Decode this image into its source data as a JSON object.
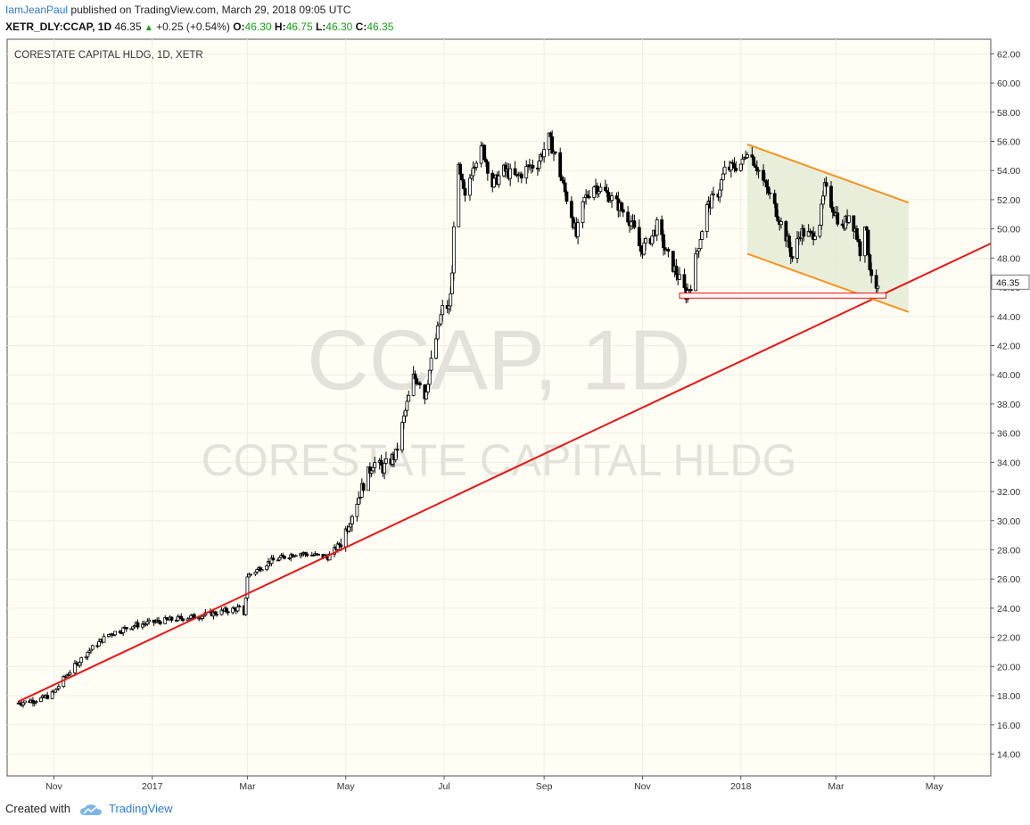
{
  "header": {
    "author": "IamJeanPaul",
    "published_text": "published on TradingView.com, March 29, 2018 09:05 UTC",
    "symbol_label": "XETR_DLY:CCAP, 1D",
    "last": "46.35",
    "change": "+0.25 (+0.54%)",
    "o_label": "O:",
    "o_value": "46.30",
    "h_label": "H:",
    "h_value": "46.75",
    "l_label": "L:",
    "l_value": "46.30",
    "c_label": "C:",
    "c_value": "46.35"
  },
  "footer": {
    "created_with": "Created with",
    "brand": "TradingView"
  },
  "chart_data": {
    "type": "candlestick",
    "title": "CORESTATE CAPITAL HLDG, 1D, XETR",
    "watermark_line1": "CCAP, 1D",
    "watermark_line2": "CORESTATE CAPITAL HLDG",
    "last_price_label": "46.35",
    "ylim": [
      12.5,
      63.0
    ],
    "y_ticks": [
      "14.00",
      "16.00",
      "18.00",
      "20.00",
      "22.00",
      "24.00",
      "26.00",
      "28.00",
      "30.00",
      "32.00",
      "34.00",
      "36.00",
      "38.00",
      "40.00",
      "42.00",
      "44.00",
      "46.00",
      "48.00",
      "50.00",
      "52.00",
      "54.00",
      "56.00",
      "58.00",
      "60.00",
      "62.00"
    ],
    "x_axis_labels": [
      {
        "label": "Nov",
        "date": "2016-11-01"
      },
      {
        "label": "2017",
        "date": "2017-01-01"
      },
      {
        "label": "Mar",
        "date": "2017-03-01"
      },
      {
        "label": "May",
        "date": "2017-05-01"
      },
      {
        "label": "Jul",
        "date": "2017-07-01"
      },
      {
        "label": "Sep",
        "date": "2017-09-01"
      },
      {
        "label": "Nov",
        "date": "2017-11-01"
      },
      {
        "label": "2018",
        "date": "2018-01-01"
      },
      {
        "label": "Mar",
        "date": "2018-03-01"
      },
      {
        "label": "May",
        "date": "2018-05-01"
      }
    ],
    "x_range": [
      "2016-10-03",
      "2018-06-05"
    ],
    "price_path": [
      [
        "2016-10-10",
        17.5
      ],
      [
        "2016-10-25",
        17.8
      ],
      [
        "2016-11-01",
        18.2
      ],
      [
        "2016-11-08",
        19.3
      ],
      [
        "2016-11-22",
        21.0
      ],
      [
        "2016-12-05",
        22.2
      ],
      [
        "2016-12-20",
        22.8
      ],
      [
        "2017-01-05",
        23.1
      ],
      [
        "2017-02-01",
        23.5
      ],
      [
        "2017-02-24",
        24.0
      ],
      [
        "2017-02-27",
        23.4
      ],
      [
        "2017-03-01",
        26.2
      ],
      [
        "2017-03-15",
        27.2
      ],
      [
        "2017-04-01",
        27.8
      ],
      [
        "2017-04-20",
        27.5
      ],
      [
        "2017-04-28",
        28.5
      ],
      [
        "2017-05-05",
        30.5
      ],
      [
        "2017-05-12",
        32.5
      ],
      [
        "2017-05-18",
        34.0
      ],
      [
        "2017-05-24",
        33.6
      ],
      [
        "2017-06-01",
        34.5
      ],
      [
        "2017-06-07",
        37.5
      ],
      [
        "2017-06-12",
        39.8
      ],
      [
        "2017-06-16",
        39.6
      ],
      [
        "2017-06-19",
        38.5
      ],
      [
        "2017-06-22",
        40.3
      ],
      [
        "2017-06-27",
        43.0
      ],
      [
        "2017-07-01",
        45.0
      ],
      [
        "2017-07-04",
        44.5
      ],
      [
        "2017-07-06",
        46.8
      ],
      [
        "2017-07-07",
        50.5
      ],
      [
        "2017-07-10",
        54.0
      ],
      [
        "2017-07-14",
        52.0
      ],
      [
        "2017-07-19",
        54.5
      ],
      [
        "2017-07-25",
        55.5
      ],
      [
        "2017-07-31",
        53.0
      ],
      [
        "2017-08-07",
        54.0
      ],
      [
        "2017-08-15",
        53.5
      ],
      [
        "2017-08-22",
        54.2
      ],
      [
        "2017-08-28",
        54.5
      ],
      [
        "2017-09-04",
        56.2
      ],
      [
        "2017-09-08",
        55.0
      ],
      [
        "2017-09-14",
        52.5
      ],
      [
        "2017-09-18",
        51.0
      ],
      [
        "2017-09-21",
        49.5
      ],
      [
        "2017-09-26",
        52.0
      ],
      [
        "2017-10-02",
        53.0
      ],
      [
        "2017-10-09",
        52.5
      ],
      [
        "2017-10-18",
        51.5
      ],
      [
        "2017-10-25",
        50.5
      ],
      [
        "2017-10-31",
        48.5
      ],
      [
        "2017-11-07",
        49.5
      ],
      [
        "2017-11-10",
        50.2
      ],
      [
        "2017-11-16",
        48.3
      ],
      [
        "2017-11-22",
        47.0
      ],
      [
        "2017-11-28",
        45.5
      ],
      [
        "2017-12-01",
        46.2
      ],
      [
        "2017-12-05",
        48.5
      ],
      [
        "2017-12-11",
        51.5
      ],
      [
        "2017-12-18",
        52.5
      ],
      [
        "2017-12-22",
        54.0
      ],
      [
        "2018-01-02",
        54.5
      ],
      [
        "2018-01-05",
        55.5
      ],
      [
        "2018-01-10",
        54.5
      ],
      [
        "2018-01-16",
        53.0
      ],
      [
        "2018-01-22",
        51.5
      ],
      [
        "2018-01-29",
        49.5
      ],
      [
        "2018-02-02",
        48.0
      ],
      [
        "2018-02-07",
        49.8
      ],
      [
        "2018-02-14",
        49.5
      ],
      [
        "2018-02-19",
        50.5
      ],
      [
        "2018-02-22",
        52.8
      ],
      [
        "2018-02-27",
        51.5
      ],
      [
        "2018-03-05",
        50.0
      ],
      [
        "2018-03-09",
        51.0
      ],
      [
        "2018-03-13",
        50.0
      ],
      [
        "2018-03-16",
        48.5
      ],
      [
        "2018-03-19",
        50.5
      ],
      [
        "2018-03-22",
        47.5
      ],
      [
        "2018-03-26",
        45.5
      ],
      [
        "2018-03-28",
        46.3
      ]
    ],
    "drawings": {
      "trendline": {
        "color": "#e81616",
        "start": [
          "2016-10-10",
          17.6
        ],
        "end": [
          "2018-06-05",
          49.0
        ]
      },
      "channel_upper": {
        "color": "#f7931e",
        "start": [
          "2018-01-05",
          55.8
        ],
        "end": [
          "2018-04-15",
          51.8
        ]
      },
      "channel_lower": {
        "color": "#f7931e",
        "start": [
          "2018-01-05",
          48.3
        ],
        "end": [
          "2018-04-15",
          44.3
        ]
      },
      "channel_fill": "#e4ead4",
      "support_box": {
        "color": "#e81616",
        "start": [
          "2017-11-24",
          45.6
        ],
        "end": [
          "2018-04-01",
          45.25
        ]
      }
    }
  }
}
